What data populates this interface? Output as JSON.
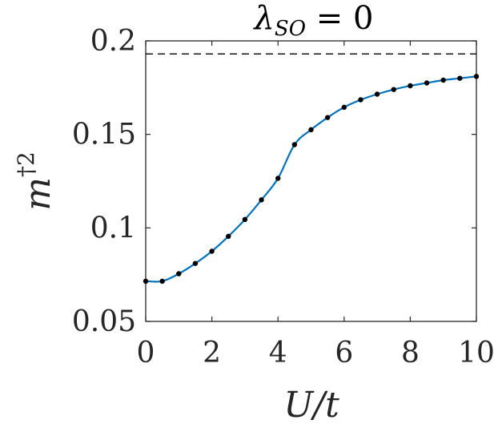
{
  "chart_data": {
    "type": "line",
    "title": "λ_SO = 0",
    "title_parts": {
      "symbol": "λ",
      "subscript": "SO",
      "rest": " = 0"
    },
    "xlabel": "U/t",
    "ylabel_parts": {
      "base": "m",
      "sup": "†2"
    },
    "xlim": [
      0,
      10
    ],
    "ylim": [
      0.05,
      0.2
    ],
    "xticks": [
      0,
      2,
      4,
      6,
      8,
      10
    ],
    "xtick_labels": [
      "0",
      "2",
      "4",
      "6",
      "8",
      "10"
    ],
    "yticks": [
      0.05,
      0.1,
      0.15,
      0.2
    ],
    "ytick_labels": [
      "0.05",
      "0.1",
      "0.15",
      "0.2"
    ],
    "grid": false,
    "reference_line": {
      "y": 0.193,
      "style": "dashed",
      "color": "#000000"
    },
    "series": [
      {
        "color": "#0072BD",
        "marker_color": "#000000",
        "x": [
          0,
          0.5,
          1,
          1.5,
          2,
          2.5,
          3,
          3.5,
          4,
          4.5,
          5,
          5.5,
          6,
          6.5,
          7,
          7.5,
          8,
          8.5,
          9,
          9.5,
          10
        ],
        "y": [
          0.0715,
          0.0715,
          0.0755,
          0.081,
          0.0875,
          0.0955,
          0.1045,
          0.115,
          0.1265,
          0.1445,
          0.1525,
          0.159,
          0.1645,
          0.1685,
          0.1715,
          0.174,
          0.176,
          0.1775,
          0.179,
          0.18,
          0.181
        ]
      }
    ]
  }
}
